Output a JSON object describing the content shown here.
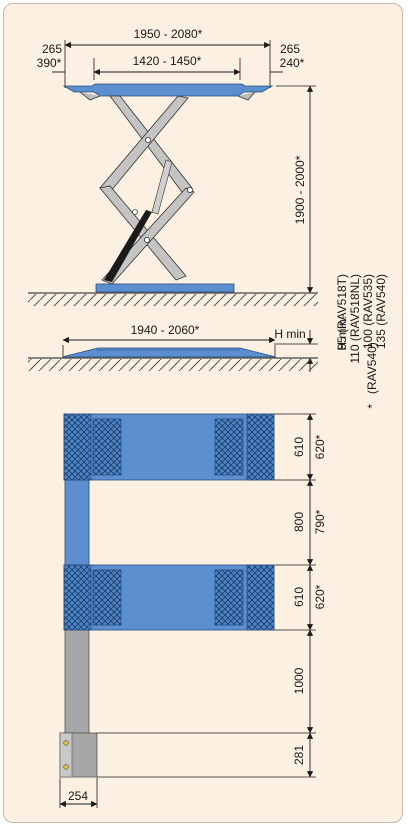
{
  "side_view": {
    "overall_width": "1950 - 2080*",
    "left_overhang": "265",
    "left_overhang_alt": "390*",
    "right_overhang": "265",
    "right_overhang_alt": "240*",
    "platform_width": "1420 - 1450*",
    "lift_height": "1900 - 2000*"
  },
  "lowered_view": {
    "width": "1940 - 2060*",
    "h_min_label": "H min"
  },
  "h_min_notes": {
    "title": "H min:",
    "lines": [
      "95 (RAV518T)",
      "110 (RAV518NL)",
      "100 (RAV535)",
      "135 (RAV540)"
    ]
  },
  "footnote": "(RAV540)",
  "footnote_mark": "*",
  "plan_view": {
    "pad_top_depth": "610",
    "pad_top_depth_alt": "620*",
    "gap": "800",
    "gap_alt": "790*",
    "pad_bottom_depth": "610",
    "pad_bottom_depth_alt": "620*",
    "extension_length": "1000",
    "base_depth": "281",
    "base_width": "254"
  },
  "colors": {
    "platform_blue": "#5b8fcf",
    "frame_bg": "#fbf0e2",
    "column_gray": "#a7a7a7",
    "ground": "#555555"
  }
}
